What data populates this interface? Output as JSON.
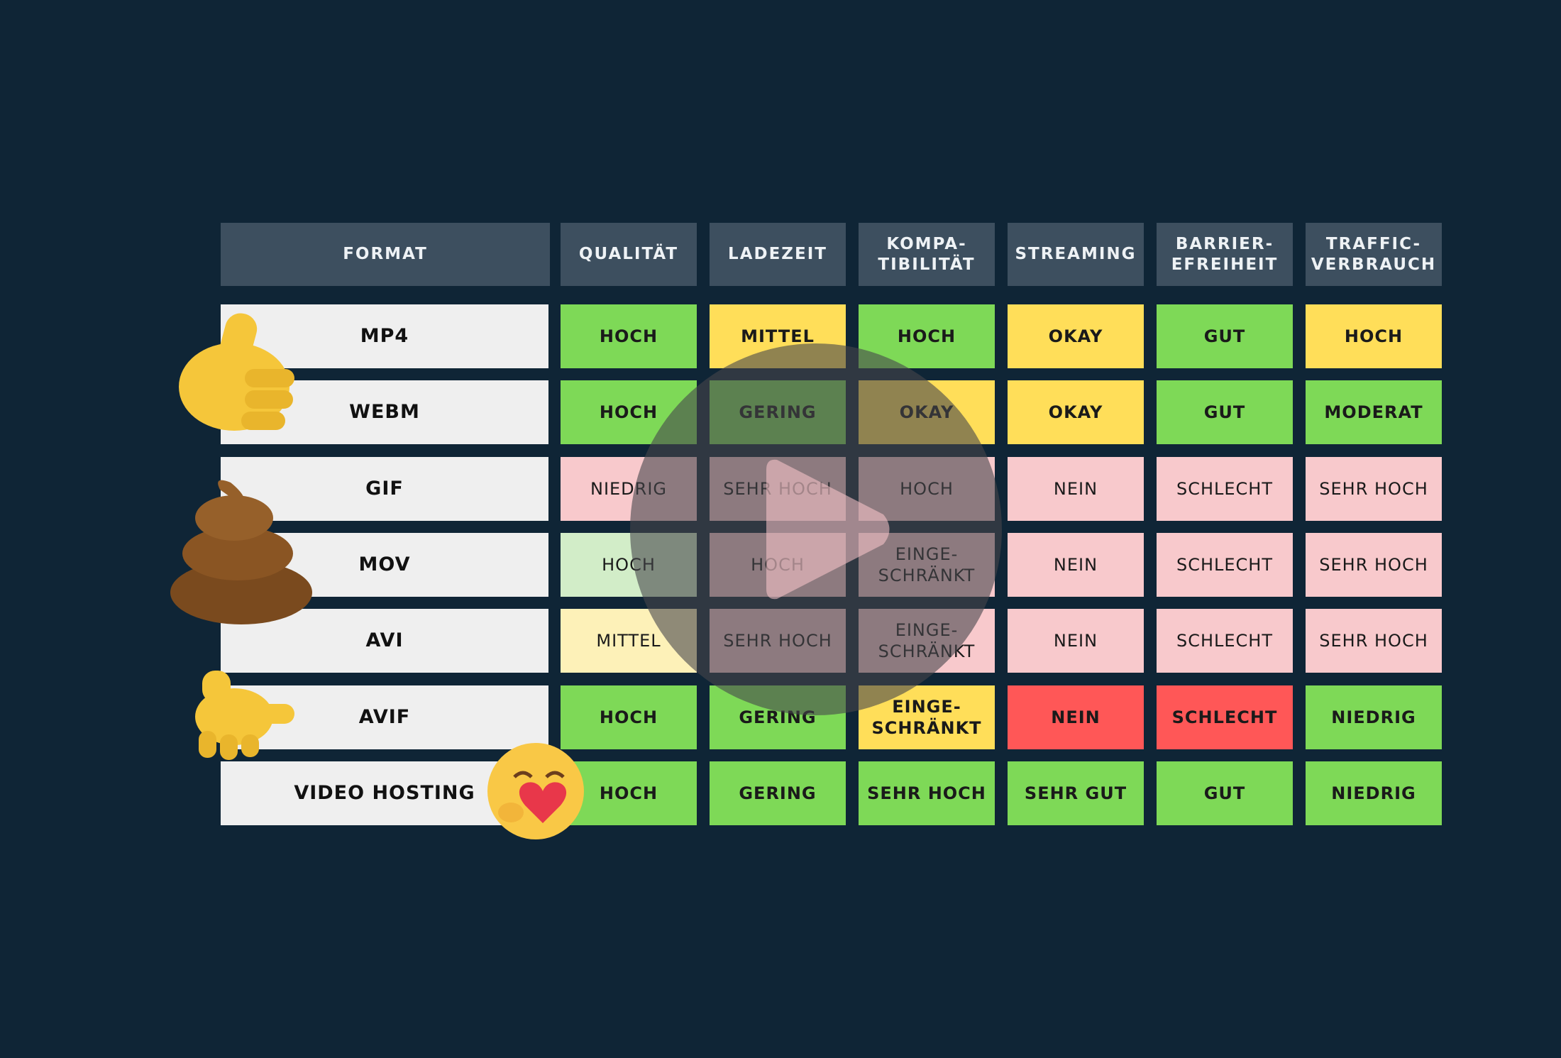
{
  "header": {
    "columns": [
      "FORMAT",
      "QUALITÄT",
      "LADEZEIT",
      "KOMPA-\nTIBILITÄT",
      "STREAMING",
      "BARRIER-\nEFREIHEIT",
      "TRAFFIC-\nVERBRAUCH"
    ]
  },
  "table": {
    "rows": [
      {
        "format": "MP4",
        "cells": [
          {
            "text": "HOCH",
            "color": "#7ed957",
            "bold": true
          },
          {
            "text": "MITTEL",
            "color": "#ffde59",
            "bold": true
          },
          {
            "text": "HOCH",
            "color": "#7ed957",
            "bold": true
          },
          {
            "text": "OKAY",
            "color": "#ffde59",
            "bold": true
          },
          {
            "text": "GUT",
            "color": "#7ed957",
            "bold": true
          },
          {
            "text": "HOCH",
            "color": "#ffde59",
            "bold": true
          }
        ]
      },
      {
        "format": "WEBM",
        "cells": [
          {
            "text": "HOCH",
            "color": "#7ed957",
            "bold": true
          },
          {
            "text": "GERING",
            "color": "#7ed957",
            "bold": true
          },
          {
            "text": "OKAY",
            "color": "#ffde59",
            "bold": true
          },
          {
            "text": "OKAY",
            "color": "#ffde59",
            "bold": true
          },
          {
            "text": "GUT",
            "color": "#7ed957",
            "bold": true
          },
          {
            "text": "MODERAT",
            "color": "#7ed957",
            "bold": true
          }
        ]
      },
      {
        "format": "GIF",
        "cells": [
          {
            "text": "NIEDRIG",
            "color": "#f8c9cc",
            "bold": false
          },
          {
            "text": "SEHR HOCH",
            "color": "#f8c9cc",
            "bold": false
          },
          {
            "text": "HOCH",
            "color": "#f8c9cc",
            "bold": false
          },
          {
            "text": "NEIN",
            "color": "#f8c9cc",
            "bold": false
          },
          {
            "text": "SCHLECHT",
            "color": "#f8c9cc",
            "bold": false
          },
          {
            "text": "SEHR HOCH",
            "color": "#f8c9cc",
            "bold": false
          }
        ]
      },
      {
        "format": "MOV",
        "cells": [
          {
            "text": "HOCH",
            "color": "#d2edc8",
            "bold": false
          },
          {
            "text": "HOCH",
            "color": "#f8c9cc",
            "bold": false
          },
          {
            "text": "EINGE-\nSCHRÄNKT",
            "color": "#f8c9cc",
            "bold": false
          },
          {
            "text": "NEIN",
            "color": "#f8c9cc",
            "bold": false
          },
          {
            "text": "SCHLECHT",
            "color": "#f8c9cc",
            "bold": false
          },
          {
            "text": "SEHR HOCH",
            "color": "#f8c9cc",
            "bold": false
          }
        ]
      },
      {
        "format": "AVI",
        "cells": [
          {
            "text": "MITTEL",
            "color": "#fdf1b8",
            "bold": false
          },
          {
            "text": "SEHR HOCH",
            "color": "#f8c9cc",
            "bold": false
          },
          {
            "text": "EINGE-\nSCHRÄNKT",
            "color": "#f8c9cc",
            "bold": false
          },
          {
            "text": "NEIN",
            "color": "#f8c9cc",
            "bold": false
          },
          {
            "text": "SCHLECHT",
            "color": "#f8c9cc",
            "bold": false
          },
          {
            "text": "SEHR HOCH",
            "color": "#f8c9cc",
            "bold": false
          }
        ]
      },
      {
        "format": "AVIF",
        "cells": [
          {
            "text": "HOCH",
            "color": "#7ed957",
            "bold": true
          },
          {
            "text": "GERING",
            "color": "#7ed957",
            "bold": true
          },
          {
            "text": "EINGE-\nSCHRÄNKT",
            "color": "#ffde59",
            "bold": true
          },
          {
            "text": "NEIN",
            "color": "#ff5757",
            "bold": true
          },
          {
            "text": "SCHLECHT",
            "color": "#ff5757",
            "bold": true
          },
          {
            "text": "NIEDRIG",
            "color": "#7ed957",
            "bold": true
          }
        ]
      },
      {
        "format": "VIDEO HOSTING",
        "cells": [
          {
            "text": "HOCH",
            "color": "#7ed957",
            "bold": true
          },
          {
            "text": "GERING",
            "color": "#7ed957",
            "bold": true
          },
          {
            "text": "SEHR HOCH",
            "color": "#7ed957",
            "bold": true
          },
          {
            "text": "SEHR GUT",
            "color": "#7ed957",
            "bold": true
          },
          {
            "text": "GUT",
            "color": "#7ed957",
            "bold": true
          },
          {
            "text": "NIEDRIG",
            "color": "#7ed957",
            "bold": true
          }
        ]
      }
    ]
  }
}
